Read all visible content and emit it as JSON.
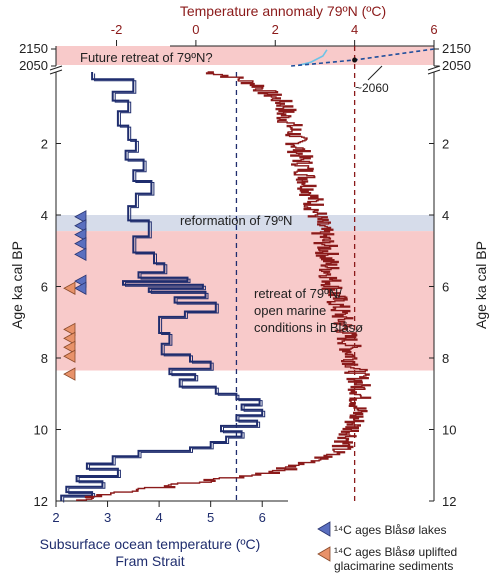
{
  "chart_data": {
    "type": "line",
    "top_axis": {
      "label": "Temperature annomaly 79ºN (ºC)",
      "ticks": [
        -2,
        0,
        2,
        4,
        6
      ],
      "range": [
        -3.5,
        6
      ],
      "color": "#8b1a1a"
    },
    "bottom_axis": {
      "label_line1": "Subsurface ocean temperature (ºC)",
      "label_line2": "Fram Strait",
      "ticks": [
        2,
        3,
        4,
        5,
        6
      ],
      "range": [
        2,
        6.5
      ],
      "color": "#1f2d6e"
    },
    "y_axis": {
      "label": "Age ka cal BP",
      "ticks": [
        2,
        4,
        6,
        8,
        10,
        12
      ],
      "range": [
        0,
        12
      ],
      "future_ticks": [
        "2150",
        "2050"
      ]
    },
    "bands": [
      {
        "label": "Future retreat of 79ºN?",
        "zone": "future",
        "color": "#f8caca"
      },
      {
        "label": "reformation of 79ºN",
        "from": 4.0,
        "to": 4.45,
        "color": "#d6dcea"
      },
      {
        "label": "retreat of 79ºN/ open marine conditions in Blåsø",
        "from": 4.45,
        "to": 8.35,
        "color": "#f8caca"
      }
    ],
    "reference_lines": [
      {
        "axis": "bottom",
        "value": 5.5,
        "color": "#1f2d6e"
      },
      {
        "axis": "top",
        "value": 4.0,
        "color": "#8b1a1a"
      }
    ],
    "annotation_2060": "~2060",
    "series": [
      {
        "name": "Subsurface ocean temperature Fram Strait",
        "color": "#1f2d6e",
        "step": true,
        "points": [
          [
            2.7,
            0.0
          ],
          [
            2.7,
            0.2
          ],
          [
            3.5,
            0.2
          ],
          [
            3.5,
            0.55
          ],
          [
            3.1,
            0.55
          ],
          [
            3.1,
            0.8
          ],
          [
            3.4,
            0.8
          ],
          [
            3.4,
            1.1
          ],
          [
            3.2,
            1.1
          ],
          [
            3.2,
            1.5
          ],
          [
            3.4,
            1.5
          ],
          [
            3.4,
            1.9
          ],
          [
            3.55,
            1.9
          ],
          [
            3.55,
            2.2
          ],
          [
            3.35,
            2.2
          ],
          [
            3.35,
            2.45
          ],
          [
            3.7,
            2.45
          ],
          [
            3.7,
            2.75
          ],
          [
            3.5,
            2.75
          ],
          [
            3.5,
            3.05
          ],
          [
            3.85,
            3.05
          ],
          [
            3.85,
            3.4
          ],
          [
            3.55,
            3.4
          ],
          [
            3.55,
            3.75
          ],
          [
            3.4,
            3.75
          ],
          [
            3.4,
            4.15
          ],
          [
            3.8,
            4.15
          ],
          [
            3.8,
            4.6
          ],
          [
            3.5,
            4.6
          ],
          [
            3.5,
            5.05
          ],
          [
            3.9,
            5.05
          ],
          [
            3.9,
            5.35
          ],
          [
            4.1,
            5.35
          ],
          [
            4.1,
            5.6
          ],
          [
            3.6,
            5.6
          ],
          [
            3.6,
            5.75
          ],
          [
            4.55,
            5.75
          ],
          [
            4.55,
            5.85
          ],
          [
            3.3,
            5.85
          ],
          [
            3.3,
            5.95
          ],
          [
            4.85,
            5.95
          ],
          [
            4.85,
            6.05
          ],
          [
            3.8,
            6.05
          ],
          [
            3.8,
            6.15
          ],
          [
            4.9,
            6.15
          ],
          [
            4.9,
            6.3
          ],
          [
            4.3,
            6.3
          ],
          [
            4.3,
            6.45
          ],
          [
            5.1,
            6.45
          ],
          [
            5.1,
            6.7
          ],
          [
            4.5,
            6.7
          ],
          [
            4.5,
            6.85
          ],
          [
            4.0,
            6.85
          ],
          [
            4.0,
            7.3
          ],
          [
            4.2,
            7.3
          ],
          [
            4.2,
            7.6
          ],
          [
            4.05,
            7.6
          ],
          [
            4.05,
            7.9
          ],
          [
            4.6,
            7.9
          ],
          [
            4.6,
            8.1
          ],
          [
            5.0,
            8.1
          ],
          [
            5.0,
            8.3
          ],
          [
            4.2,
            8.3
          ],
          [
            4.2,
            8.45
          ],
          [
            4.7,
            8.45
          ],
          [
            4.7,
            8.6
          ],
          [
            4.4,
            8.6
          ],
          [
            4.4,
            8.8
          ],
          [
            5.1,
            8.8
          ],
          [
            5.1,
            9.0
          ],
          [
            5.5,
            9.0
          ],
          [
            5.5,
            9.15
          ],
          [
            5.95,
            9.15
          ],
          [
            5.95,
            9.3
          ],
          [
            5.6,
            9.3
          ],
          [
            5.6,
            9.45
          ],
          [
            6.0,
            9.45
          ],
          [
            6.0,
            9.6
          ],
          [
            5.5,
            9.6
          ],
          [
            5.5,
            9.75
          ],
          [
            5.9,
            9.75
          ],
          [
            5.9,
            9.9
          ],
          [
            5.2,
            9.9
          ],
          [
            5.2,
            10.05
          ],
          [
            5.6,
            10.05
          ],
          [
            5.6,
            10.2
          ],
          [
            5.3,
            10.2
          ],
          [
            5.3,
            10.35
          ],
          [
            5.0,
            10.35
          ],
          [
            5.0,
            10.5
          ],
          [
            4.6,
            10.5
          ],
          [
            4.6,
            10.6
          ],
          [
            3.6,
            10.6
          ],
          [
            3.6,
            10.75
          ],
          [
            3.1,
            10.75
          ],
          [
            3.1,
            10.95
          ],
          [
            2.6,
            10.95
          ],
          [
            2.6,
            11.1
          ],
          [
            3.2,
            11.1
          ],
          [
            3.2,
            11.3
          ],
          [
            2.4,
            11.3
          ],
          [
            2.4,
            11.45
          ],
          [
            2.9,
            11.45
          ],
          [
            2.9,
            11.6
          ],
          [
            2.2,
            11.6
          ],
          [
            2.2,
            11.75
          ],
          [
            2.7,
            11.75
          ],
          [
            2.7,
            11.85
          ],
          [
            2.1,
            11.85
          ],
          [
            2.1,
            12.0
          ]
        ]
      },
      {
        "name": "Temperature annomaly 79ºN",
        "color": "#8b1a1a",
        "step": false,
        "points": [
          [
            0.3,
            0.0
          ],
          [
            0.8,
            0.12
          ],
          [
            1.2,
            0.25
          ],
          [
            1.6,
            0.4
          ],
          [
            1.8,
            0.6
          ],
          [
            2.1,
            0.8
          ],
          [
            2.3,
            1.0
          ],
          [
            2.2,
            1.2
          ],
          [
            2.4,
            1.5
          ],
          [
            2.5,
            1.8
          ],
          [
            2.6,
            2.2
          ],
          [
            2.7,
            2.6
          ],
          [
            2.8,
            3.0
          ],
          [
            2.9,
            3.4
          ],
          [
            3.0,
            3.8
          ],
          [
            3.1,
            4.2
          ],
          [
            3.2,
            4.6
          ],
          [
            3.3,
            5.0
          ],
          [
            3.35,
            5.4
          ],
          [
            3.4,
            5.8
          ],
          [
            3.5,
            6.2
          ],
          [
            3.6,
            6.6
          ],
          [
            3.7,
            7.0
          ],
          [
            3.8,
            7.4
          ],
          [
            3.9,
            7.8
          ],
          [
            4.0,
            8.2
          ],
          [
            4.1,
            8.6
          ],
          [
            4.15,
            9.0
          ],
          [
            4.1,
            9.4
          ],
          [
            4.0,
            9.8
          ],
          [
            3.9,
            10.2
          ],
          [
            3.6,
            10.6
          ],
          [
            3.0,
            10.9
          ],
          [
            2.0,
            11.2
          ],
          [
            0.0,
            11.5
          ],
          [
            -2.0,
            11.8
          ],
          [
            -3.0,
            12.0
          ]
        ],
        "noise": 0.3
      }
    ],
    "future_series": {
      "light": {
        "color": "#6ec3e6",
        "points": [
          [
            2.6,
            0.0
          ],
          [
            2.9,
            0.2
          ],
          [
            3.2,
            0.6
          ],
          [
            3.3,
            1.0
          ]
        ]
      },
      "projection": {
        "color": "#1f4e9c",
        "points": [
          [
            2.4,
            0.0
          ],
          [
            4.0,
            0.35
          ],
          [
            6.0,
            1.0
          ]
        ]
      }
    },
    "legend": [
      {
        "label": "¹⁴C ages Blåsø lakes",
        "color": "#5a6fbf"
      },
      {
        "label": "¹⁴C ages Blåsø uplifted glacimarine sediments",
        "label_line1": "¹⁴C ages Blåsø uplifted",
        "label_line2": "glacimarine sediments",
        "color": "#e8926a"
      }
    ],
    "markers": {
      "lakes": [
        4.05,
        4.3,
        4.55,
        4.8,
        5.1,
        5.85,
        6.05
      ],
      "sediments": [
        6.05,
        7.2,
        7.45,
        7.7,
        7.95,
        8.45
      ]
    }
  }
}
